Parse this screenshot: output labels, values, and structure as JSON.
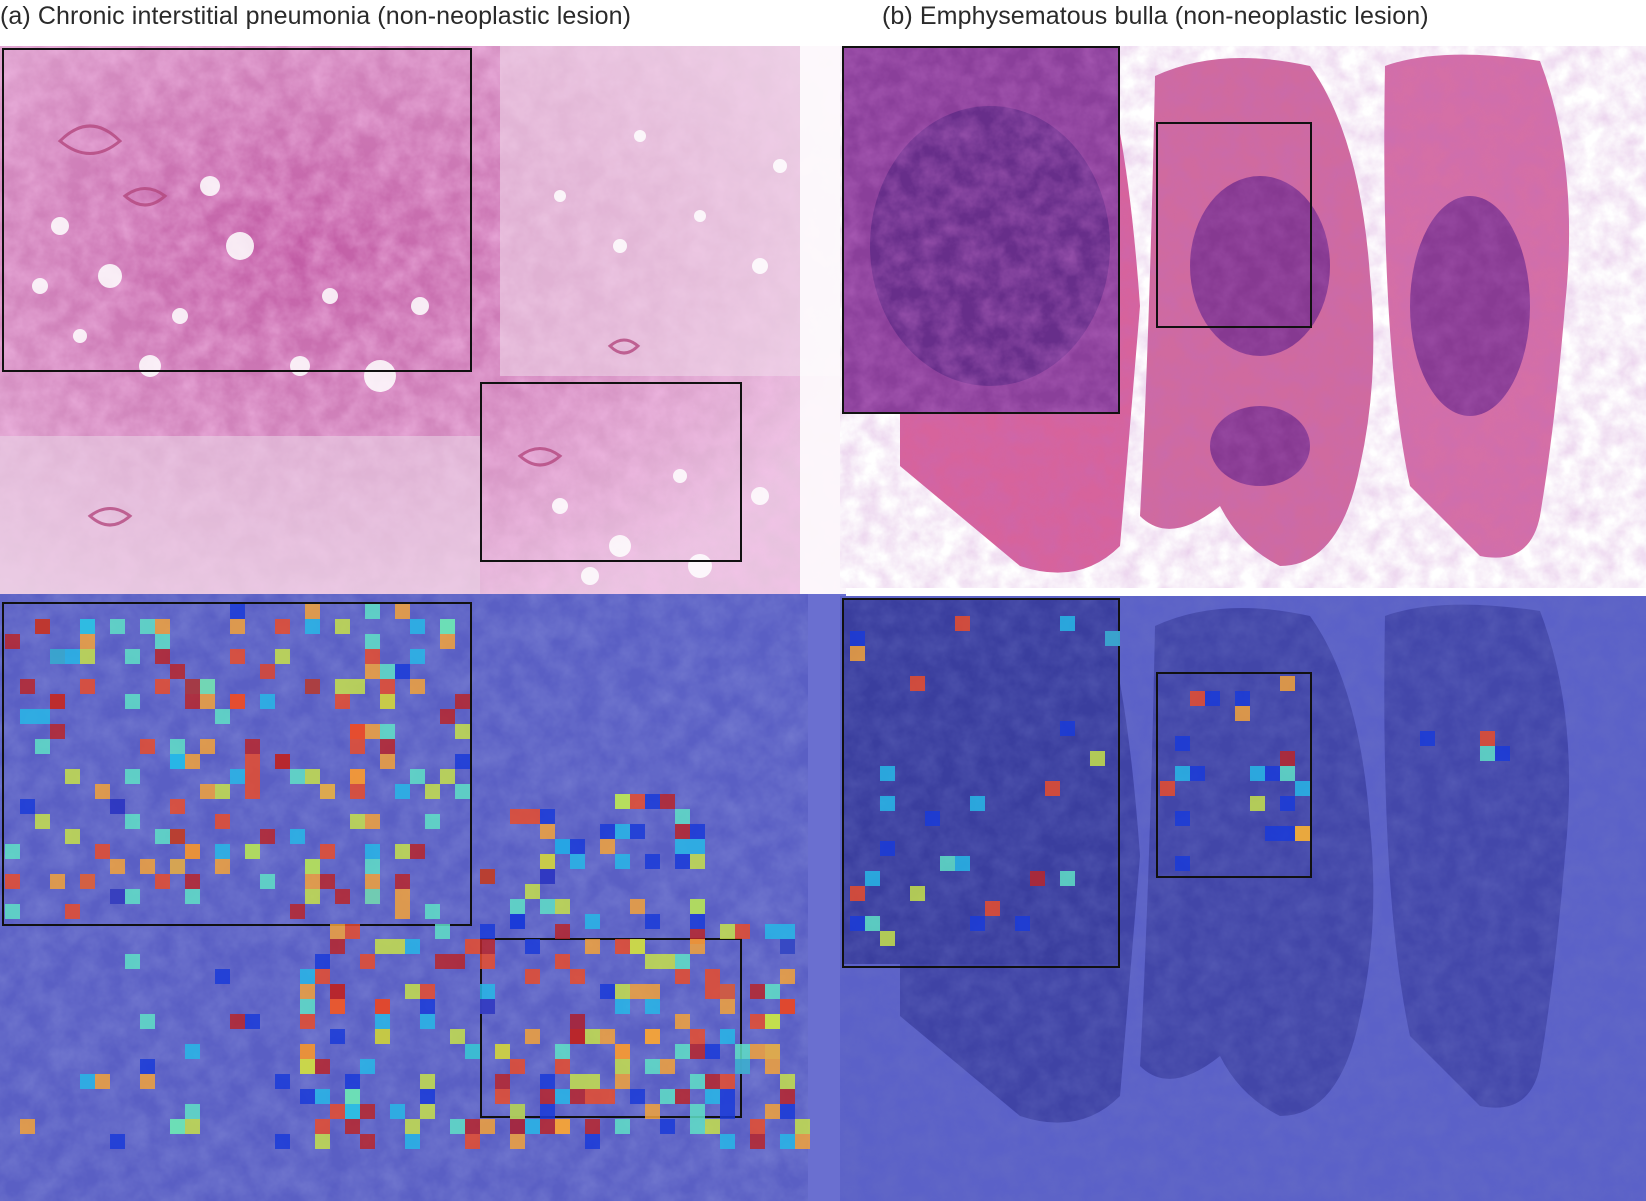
{
  "figure": {
    "panel_a_caption": "(a) Chronic interstitial pneumonia (non-neoplastic lesion)",
    "panel_b_caption": "(b) Emphysematous bulla (non-neoplastic lesion)"
  },
  "colors": {
    "he_stain": "#c1609f",
    "he_dark": "#7a2f86",
    "overlay_blue": "#5a5fc4",
    "heat_scale": [
      "#1a3bd8",
      "#27b7e6",
      "#5fe0c6",
      "#c6e04a",
      "#f2a23a",
      "#e84c2b",
      "#b8262a"
    ]
  },
  "panels": {
    "a_top": {
      "image": "he-slide-chronic-interstitial-pneumonia"
    },
    "a_bottom": {
      "image": "attention-heatmap-chronic-interstitial-pneumonia"
    },
    "b_top": {
      "image": "he-slide-emphysematous-bulla"
    },
    "b_bottom": {
      "image": "attention-heatmap-emphysematous-bulla"
    }
  }
}
